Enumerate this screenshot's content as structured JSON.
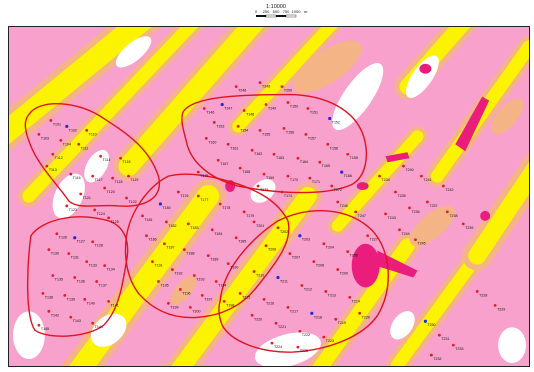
{
  "scale_bar": {
    "ratio": "1:10000",
    "ticks": [
      "0",
      "250",
      "500",
      "750",
      "1000"
    ],
    "unit": "m"
  },
  "colors": {
    "pink": "#f7a1cc",
    "light_pink": "#f6b8d6",
    "yellow": "#fbf300",
    "peach": "#f5b486",
    "white": "#ffffff",
    "magenta": "#ea1c7c",
    "red_outline": "#e0141e",
    "red_point": "#e41d24",
    "blue_point": "#1f2bd6"
  },
  "samples": [
    {
      "label": "T101",
      "color": "red"
    },
    {
      "label": "T102",
      "color": "red"
    },
    {
      "label": "T103",
      "color": "red"
    },
    {
      "label": "T104",
      "color": "red"
    },
    {
      "label": "T110",
      "color": "red"
    },
    {
      "label": "T111",
      "color": "red"
    },
    {
      "label": "T112",
      "color": "red"
    },
    {
      "label": "T113",
      "color": "red"
    },
    {
      "label": "T114",
      "color": "red"
    },
    {
      "label": "T115",
      "color": "red"
    },
    {
      "label": "T116",
      "color": "red"
    },
    {
      "label": "T117",
      "color": "red"
    },
    {
      "label": "T118",
      "color": "red"
    },
    {
      "label": "T119",
      "color": "red"
    },
    {
      "label": "T120",
      "color": "red"
    },
    {
      "label": "T121",
      "color": "red"
    },
    {
      "label": "T122",
      "color": "red"
    },
    {
      "label": "T123",
      "color": "red"
    },
    {
      "label": "T124",
      "color": "red"
    },
    {
      "label": "T125",
      "color": "red"
    },
    {
      "label": "T126",
      "color": "red"
    },
    {
      "label": "T127",
      "color": "red"
    },
    {
      "label": "T128",
      "color": "red"
    },
    {
      "label": "T130",
      "color": "red"
    },
    {
      "label": "T131",
      "color": "red"
    },
    {
      "label": "T133",
      "color": "red"
    },
    {
      "label": "T134",
      "color": "red"
    },
    {
      "label": "T135",
      "color": "red"
    },
    {
      "label": "T136",
      "color": "red"
    },
    {
      "label": "T137",
      "color": "red"
    },
    {
      "label": "T138",
      "color": "red"
    },
    {
      "label": "T139",
      "color": "red"
    },
    {
      "label": "T140",
      "color": "red"
    },
    {
      "label": "T141",
      "color": "red"
    },
    {
      "label": "T142",
      "color": "red"
    },
    {
      "label": "T143",
      "color": "red"
    },
    {
      "label": "T144",
      "color": "red"
    },
    {
      "label": "T145",
      "color": "red"
    },
    {
      "label": "T146",
      "color": "red"
    },
    {
      "label": "T147",
      "color": "red"
    },
    {
      "label": "T148",
      "color": "red"
    },
    {
      "label": "T149",
      "color": "red"
    },
    {
      "label": "T150",
      "color": "red"
    },
    {
      "label": "T151",
      "color": "red"
    },
    {
      "label": "T152",
      "color": "red"
    },
    {
      "label": "T153",
      "color": "red"
    },
    {
      "label": "T154",
      "color": "red"
    },
    {
      "label": "T155",
      "color": "red"
    },
    {
      "label": "T156",
      "color": "red"
    },
    {
      "label": "T157",
      "color": "red"
    },
    {
      "label": "T158",
      "color": "red"
    },
    {
      "label": "T159",
      "color": "red"
    },
    {
      "label": "T160",
      "color": "red"
    },
    {
      "label": "T161",
      "color": "red"
    },
    {
      "label": "T162",
      "color": "red"
    },
    {
      "label": "T163",
      "color": "red"
    },
    {
      "label": "T164",
      "color": "red"
    },
    {
      "label": "T165",
      "color": "red"
    },
    {
      "label": "T166",
      "color": "red"
    },
    {
      "label": "T167",
      "color": "red"
    },
    {
      "label": "T168",
      "color": "red"
    },
    {
      "label": "T169",
      "color": "red"
    },
    {
      "label": "T170",
      "color": "red"
    },
    {
      "label": "T171",
      "color": "red"
    },
    {
      "label": "T172",
      "color": "red"
    },
    {
      "label": "T173",
      "color": "red"
    },
    {
      "label": "T174",
      "color": "red"
    },
    {
      "label": "T175",
      "color": "red"
    },
    {
      "label": "T176",
      "color": "red"
    },
    {
      "label": "T177",
      "color": "red"
    },
    {
      "label": "T178",
      "color": "red"
    },
    {
      "label": "T179",
      "color": "red"
    },
    {
      "label": "T180",
      "color": "red"
    },
    {
      "label": "T181",
      "color": "red"
    },
    {
      "label": "T182",
      "color": "red"
    },
    {
      "label": "T183",
      "color": "red"
    },
    {
      "label": "T184",
      "color": "red"
    },
    {
      "label": "T185",
      "color": "red"
    },
    {
      "label": "T186",
      "color": "red"
    },
    {
      "label": "T187",
      "color": "red"
    },
    {
      "label": "T188",
      "color": "red"
    },
    {
      "label": "T189",
      "color": "red"
    },
    {
      "label": "T190",
      "color": "red"
    },
    {
      "label": "T191",
      "color": "red"
    },
    {
      "label": "T192",
      "color": "red"
    },
    {
      "label": "T193",
      "color": "red"
    },
    {
      "label": "T194",
      "color": "red"
    },
    {
      "label": "T195",
      "color": "red"
    },
    {
      "label": "T196",
      "color": "red"
    },
    {
      "label": "T197",
      "color": "red"
    },
    {
      "label": "T198",
      "color": "red"
    },
    {
      "label": "T199",
      "color": "red"
    },
    {
      "label": "T200",
      "color": "red"
    },
    {
      "label": "T201",
      "color": "red"
    },
    {
      "label": "T202",
      "color": "red"
    },
    {
      "label": "T203",
      "color": "red"
    },
    {
      "label": "T204",
      "color": "red"
    },
    {
      "label": "T205",
      "color": "red"
    },
    {
      "label": "T206",
      "color": "red"
    },
    {
      "label": "T207",
      "color": "red"
    },
    {
      "label": "T208",
      "color": "red"
    },
    {
      "label": "T209",
      "color": "red"
    },
    {
      "label": "T210",
      "color": "red"
    },
    {
      "label": "T211",
      "color": "red"
    },
    {
      "label": "T212",
      "color": "red"
    },
    {
      "label": "T213",
      "color": "red"
    },
    {
      "label": "T214",
      "color": "red"
    },
    {
      "label": "T215",
      "color": "red"
    },
    {
      "label": "T216",
      "color": "red"
    },
    {
      "label": "T217",
      "color": "red"
    },
    {
      "label": "T218",
      "color": "red"
    },
    {
      "label": "T219",
      "color": "red"
    },
    {
      "label": "T220",
      "color": "red"
    },
    {
      "label": "T221",
      "color": "red"
    },
    {
      "label": "T222",
      "color": "red"
    },
    {
      "label": "T223",
      "color": "red"
    },
    {
      "label": "T224",
      "color": "red"
    },
    {
      "label": "T225",
      "color": "red"
    },
    {
      "label": "T226",
      "color": "red"
    },
    {
      "label": "T227",
      "color": "red"
    },
    {
      "label": "T228",
      "color": "red"
    },
    {
      "label": "T229",
      "color": "red"
    },
    {
      "label": "T230",
      "color": "red"
    },
    {
      "label": "T231",
      "color": "red"
    },
    {
      "label": "T232",
      "color": "red"
    },
    {
      "label": "T233",
      "color": "red"
    },
    {
      "label": "T234",
      "color": "red"
    },
    {
      "label": "T235",
      "color": "red"
    },
    {
      "label": "T236",
      "color": "red"
    },
    {
      "label": "T237",
      "color": "red"
    },
    {
      "label": "T238",
      "color": "red"
    },
    {
      "label": "T239",
      "color": "red"
    },
    {
      "label": "T240",
      "color": "red"
    },
    {
      "label": "T241",
      "color": "red"
    },
    {
      "label": "T242",
      "color": "red"
    },
    {
      "label": "T243",
      "color": "red"
    },
    {
      "label": "T244",
      "color": "red"
    },
    {
      "label": "T245",
      "color": "red"
    },
    {
      "label": "T246",
      "color": "red"
    },
    {
      "label": "T247",
      "color": "red"
    },
    {
      "label": "T248",
      "color": "red"
    },
    {
      "label": "T249",
      "color": "red"
    },
    {
      "label": "T250",
      "color": "red"
    }
  ]
}
